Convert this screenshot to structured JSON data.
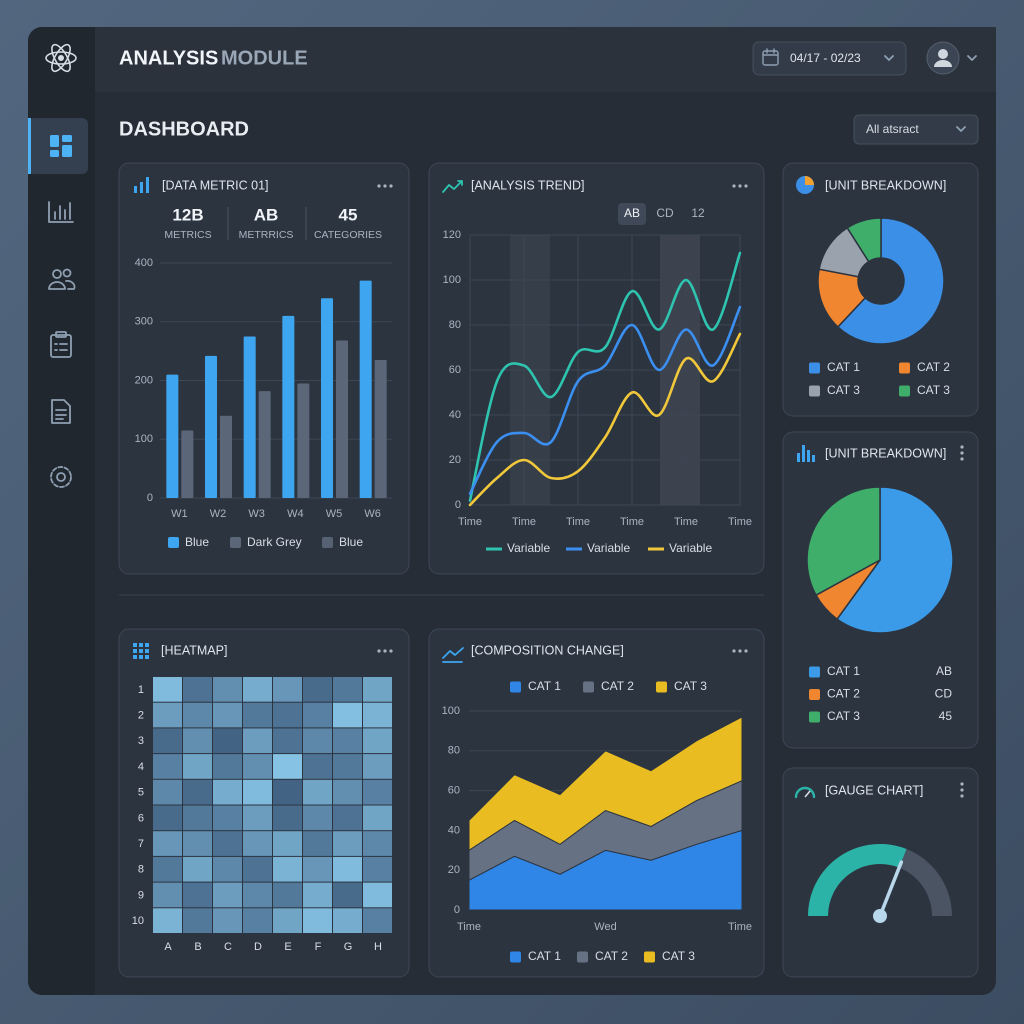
{
  "header": {
    "title_bold": "ANALYSIS",
    "title_light": "MODULE",
    "date_range": "04/17 - 02/23"
  },
  "dashboard": {
    "title": "DASHBOARD",
    "filter": "All atsract"
  },
  "chart_data": [
    {
      "type": "bar",
      "title": "[DATA METRIC 01]",
      "kpis": [
        {
          "value": "12B",
          "label": "METRICS"
        },
        {
          "value": "AB",
          "label": "METRRICS"
        },
        {
          "value": "45",
          "label": "CATEGORIES"
        }
      ],
      "categories": [
        "W1",
        "W2",
        "W3",
        "W4",
        "W5",
        "W6"
      ],
      "series": [
        {
          "name": "Blue",
          "color": "#3ea6f0",
          "values": [
            210,
            242,
            275,
            310,
            340,
            370
          ]
        },
        {
          "name": "Dark Grey",
          "color": "#5b6779",
          "values": [
            115,
            140,
            182,
            195,
            268,
            235
          ]
        },
        {
          "name": "Blue",
          "color": "#566274",
          "values": [
            null,
            null,
            null,
            null,
            null,
            null
          ]
        }
      ],
      "ylim": [
        0,
        400
      ],
      "yticks": [
        0,
        100,
        200,
        300,
        400
      ],
      "grid": true
    },
    {
      "type": "line",
      "title": "[ANALYSIS TREND]",
      "tabs": [
        "AB",
        "CD",
        "12"
      ],
      "categories": [
        "Time",
        null,
        "Time",
        null,
        "Time",
        null,
        "Time",
        null,
        "Time",
        null,
        "Time"
      ],
      "series": [
        {
          "name": "Variable",
          "color": "#2ec4b0",
          "values": [
            2,
            55,
            62,
            48,
            68,
            70,
            95,
            78,
            100,
            78,
            112
          ]
        },
        {
          "name": "Variable",
          "color": "#3b8ff0",
          "values": [
            5,
            28,
            32,
            28,
            55,
            62,
            80,
            60,
            78,
            62,
            88
          ]
        },
        {
          "name": "Variable",
          "color": "#f2c83b",
          "values": [
            0,
            12,
            20,
            12,
            15,
            30,
            50,
            40,
            65,
            55,
            76
          ]
        }
      ],
      "ylim": [
        0,
        120
      ],
      "yticks": [
        0,
        20,
        40,
        60,
        80,
        100,
        120
      ],
      "grid": true
    },
    {
      "type": "donut",
      "title": "[UNIT BREAKDOWN]",
      "categories": [
        "CAT 1",
        "CAT 2",
        "CAT 3",
        "CAT 3"
      ],
      "values": [
        62,
        16,
        13,
        9
      ],
      "colors": [
        "#3b8fe6",
        "#f0862f",
        "#9aa3ad",
        "#3fae6a"
      ]
    },
    {
      "type": "pie",
      "title": "[UNIT BREAKDOWN]",
      "categories": [
        "CAT 1",
        "CAT 2",
        "CAT 3"
      ],
      "values": [
        60,
        7,
        33
      ],
      "value_labels": [
        "AB",
        "CD",
        "45"
      ],
      "colors": [
        "#3b9be8",
        "#f0862f",
        "#3fae6a"
      ]
    },
    {
      "type": "heatmap",
      "title": "[HEATMAP]",
      "rows": [
        "1",
        "2",
        "3",
        "4",
        "5",
        "6",
        "7",
        "8",
        "9",
        "10"
      ],
      "columns": [
        "A",
        "B",
        "C",
        "D",
        "E",
        "F",
        "G",
        "H"
      ],
      "values": [
        [
          85,
          35,
          55,
          75,
          60,
          30,
          40,
          70
        ],
        [
          65,
          50,
          60,
          40,
          35,
          45,
          88,
          80
        ],
        [
          30,
          55,
          25,
          65,
          35,
          50,
          45,
          70
        ],
        [
          45,
          70,
          40,
          55,
          90,
          35,
          40,
          65
        ],
        [
          50,
          30,
          75,
          85,
          25,
          70,
          55,
          45
        ],
        [
          30,
          40,
          45,
          65,
          30,
          50,
          35,
          70
        ],
        [
          60,
          55,
          35,
          60,
          70,
          40,
          65,
          50
        ],
        [
          40,
          70,
          50,
          35,
          80,
          60,
          85,
          45
        ],
        [
          55,
          35,
          65,
          50,
          40,
          75,
          30,
          85
        ],
        [
          80,
          40,
          60,
          45,
          70,
          85,
          75,
          45
        ]
      ],
      "range": [
        0,
        100
      ],
      "color_low": "#2a3f60",
      "color_high": "#8fd0f2"
    },
    {
      "type": "stacked_area",
      "title": "[COMPOSITION CHANGE]",
      "categories": [
        "Time",
        null,
        null,
        "Wed",
        null,
        null,
        "Time"
      ],
      "series": [
        {
          "name": "CAT 1",
          "color": "#2f86e6",
          "values": [
            15,
            27,
            18,
            30,
            25,
            33,
            40
          ]
        },
        {
          "name": "CAT 2",
          "color": "#667283",
          "values": [
            15,
            18,
            15,
            20,
            17,
            22,
            25
          ]
        },
        {
          "name": "CAT 3",
          "color": "#e9bd22",
          "values": [
            15,
            23,
            25,
            30,
            28,
            30,
            32
          ]
        }
      ],
      "ylim": [
        0,
        100
      ],
      "yticks": [
        0,
        20,
        40,
        60,
        80,
        100
      ],
      "grid": true
    },
    {
      "type": "gauge",
      "title": "[GAUGE CHART]",
      "value": 62,
      "range": [
        0,
        100
      ],
      "color": "#2ab3a6"
    }
  ]
}
